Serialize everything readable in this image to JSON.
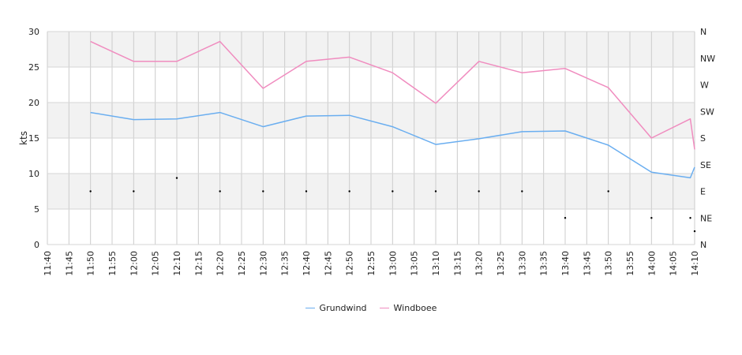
{
  "chart_data": {
    "type": "line",
    "ylabel": "kts",
    "ylim": [
      0,
      30
    ],
    "y_ticks": [
      "0",
      "5",
      "10",
      "15",
      "20",
      "25",
      "30"
    ],
    "y2_ticks": [
      "N",
      "NE",
      "E",
      "SE",
      "S",
      "SW",
      "W",
      "NW",
      "N"
    ],
    "x_ticks": [
      "11:40",
      "11:45",
      "11:50",
      "11:55",
      "12:00",
      "12:05",
      "12:10",
      "12:15",
      "12:20",
      "12:25",
      "12:30",
      "12:35",
      "12:40",
      "12:45",
      "12:50",
      "12:55",
      "13:00",
      "13:05",
      "13:10",
      "13:15",
      "13:20",
      "13:25",
      "13:30",
      "13:35",
      "13:40",
      "13:45",
      "13:50",
      "13:55",
      "14:00",
      "14:05",
      "14:10"
    ],
    "x_start": "11:40",
    "x_end": "14:10",
    "grid": true,
    "legend_position": "bottom-center",
    "series": [
      {
        "name": "Grundwind",
        "color": "#6aaef0",
        "x": [
          "11:50",
          "12:00",
          "12:10",
          "12:20",
          "12:30",
          "12:40",
          "12:50",
          "13:00",
          "13:10",
          "13:20",
          "13:30",
          "13:40",
          "13:50",
          "14:00",
          "14:09",
          "14:10"
        ],
        "values": [
          18.6,
          17.6,
          17.7,
          18.6,
          16.6,
          18.1,
          18.2,
          16.6,
          14.1,
          14.9,
          15.9,
          16.0,
          14.0,
          10.2,
          9.4,
          10.9
        ]
      },
      {
        "name": "Windboee",
        "color": "#f08cbf",
        "x": [
          "11:50",
          "12:00",
          "12:10",
          "12:20",
          "12:30",
          "12:40",
          "12:50",
          "13:00",
          "13:10",
          "13:20",
          "13:30",
          "13:40",
          "13:50",
          "14:00",
          "14:09",
          "14:10"
        ],
        "values": [
          28.6,
          25.8,
          25.8,
          28.6,
          22.0,
          25.8,
          26.4,
          24.2,
          19.9,
          25.8,
          24.2,
          24.8,
          22.1,
          15.0,
          17.7,
          13.4
        ]
      }
    ],
    "direction_points": [
      {
        "x": "11:50",
        "dir": "E"
      },
      {
        "x": "12:00",
        "dir": "E"
      },
      {
        "x": "12:10",
        "dir": "ESE"
      },
      {
        "x": "12:20",
        "dir": "E"
      },
      {
        "x": "12:30",
        "dir": "E"
      },
      {
        "x": "12:40",
        "dir": "E"
      },
      {
        "x": "12:50",
        "dir": "E"
      },
      {
        "x": "13:00",
        "dir": "E"
      },
      {
        "x": "13:10",
        "dir": "E"
      },
      {
        "x": "13:20",
        "dir": "E"
      },
      {
        "x": "13:30",
        "dir": "E"
      },
      {
        "x": "13:40",
        "dir": "NE"
      },
      {
        "x": "13:50",
        "dir": "E"
      },
      {
        "x": "14:00",
        "dir": "NE"
      },
      {
        "x": "14:09",
        "dir": "NE"
      },
      {
        "x": "14:10",
        "dir": "NNE"
      }
    ],
    "direction_order": [
      "N",
      "NNE",
      "NE",
      "ENE",
      "E",
      "ESE",
      "SE",
      "SSE",
      "S",
      "SSW",
      "SW",
      "WSW",
      "W",
      "WNW",
      "NW",
      "NNW",
      "N2"
    ],
    "colors": {
      "band": "#f2f2f2",
      "grid": "#d6d6d6",
      "vgrid": "#cccccc",
      "marker": "#000000"
    }
  }
}
